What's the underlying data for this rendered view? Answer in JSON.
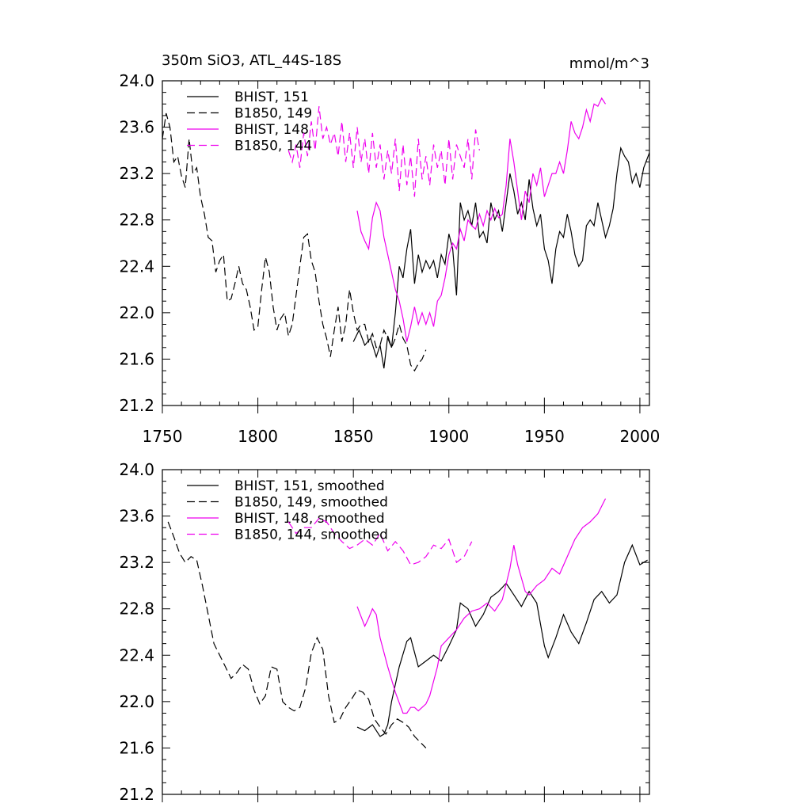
{
  "chart_data": [
    {
      "type": "line",
      "title_left": "350m SiO3, ATL_44S-18S",
      "title_right": "mmol/m^3",
      "xlim": [
        1750,
        2005
      ],
      "ylim": [
        21.2,
        24.0
      ],
      "x_ticks": [
        1750,
        1800,
        1850,
        1900,
        1950,
        2000
      ],
      "x_tick_labels": [
        "1750",
        "1800",
        "1850",
        "1900",
        "1950",
        "2000"
      ],
      "y_ticks": [
        21.2,
        21.6,
        22.0,
        22.4,
        22.8,
        23.2,
        23.6,
        24.0
      ],
      "y_tick_labels": [
        "21.2",
        "21.6",
        "22.0",
        "22.4",
        "22.8",
        "23.2",
        "23.6",
        "24.0"
      ],
      "series": [
        {
          "name": "BHIST, 151",
          "color": "#000000",
          "dash": "solid",
          "x": [
            1850,
            1853,
            1856,
            1859,
            1862,
            1864,
            1866,
            1868,
            1870,
            1872,
            1874,
            1876,
            1878,
            1880,
            1882,
            1884,
            1886,
            1888,
            1890,
            1892,
            1894,
            1896,
            1898,
            1900,
            1902,
            1904,
            1906,
            1908,
            1910,
            1912,
            1914,
            1916,
            1918,
            1920,
            1922,
            1924,
            1926,
            1928,
            1930,
            1932,
            1934,
            1936,
            1938,
            1940,
            1942,
            1944,
            1946,
            1948,
            1950,
            1952,
            1954,
            1956,
            1958,
            1960,
            1962,
            1964,
            1966,
            1968,
            1970,
            1972,
            1974,
            1976,
            1978,
            1980,
            1982,
            1984,
            1986,
            1988,
            1990,
            1992,
            1994,
            1996,
            1998,
            2000,
            2002,
            2005
          ],
          "y": [
            21.75,
            21.85,
            21.72,
            21.78,
            21.62,
            21.72,
            21.52,
            21.8,
            21.7,
            22.0,
            22.4,
            22.3,
            22.55,
            22.72,
            22.25,
            22.5,
            22.35,
            22.45,
            22.38,
            22.45,
            22.3,
            22.5,
            22.42,
            22.68,
            22.55,
            22.15,
            22.95,
            22.8,
            22.88,
            22.75,
            22.95,
            22.65,
            22.7,
            22.6,
            22.95,
            22.8,
            22.88,
            22.7,
            22.95,
            23.2,
            23.05,
            22.85,
            22.95,
            22.8,
            23.15,
            22.9,
            22.75,
            22.85,
            22.55,
            22.45,
            22.25,
            22.55,
            22.7,
            22.65,
            22.85,
            22.7,
            22.5,
            22.4,
            22.45,
            22.75,
            22.8,
            22.75,
            22.95,
            22.8,
            22.65,
            22.75,
            22.9,
            23.2,
            23.42,
            23.35,
            23.3,
            23.12,
            23.2,
            23.08,
            23.25,
            23.38
          ]
        },
        {
          "name": "B1850, 149",
          "color": "#000000",
          "dash": "dashed",
          "x": [
            1750,
            1752,
            1754,
            1756,
            1758,
            1760,
            1762,
            1764,
            1766,
            1768,
            1770,
            1772,
            1774,
            1776,
            1778,
            1780,
            1782,
            1784,
            1786,
            1788,
            1790,
            1792,
            1794,
            1796,
            1798,
            1800,
            1802,
            1804,
            1806,
            1808,
            1810,
            1812,
            1814,
            1816,
            1818,
            1820,
            1822,
            1824,
            1826,
            1828,
            1830,
            1832,
            1834,
            1836,
            1838,
            1840,
            1842,
            1844,
            1846,
            1848,
            1850,
            1852,
            1854,
            1856,
            1858,
            1860,
            1862,
            1864,
            1866,
            1868,
            1870,
            1872,
            1874,
            1876,
            1878,
            1880,
            1882,
            1884,
            1886,
            1888
          ],
          "y": [
            23.5,
            23.72,
            23.6,
            23.3,
            23.35,
            23.18,
            23.08,
            23.5,
            23.2,
            23.25,
            23.0,
            22.85,
            22.65,
            22.62,
            22.35,
            22.45,
            22.5,
            22.1,
            22.12,
            22.25,
            22.4,
            22.25,
            22.2,
            22.05,
            21.85,
            21.88,
            22.2,
            22.48,
            22.35,
            22.05,
            21.85,
            21.95,
            22.0,
            21.8,
            21.9,
            22.15,
            22.4,
            22.65,
            22.68,
            22.45,
            22.35,
            22.1,
            21.9,
            21.78,
            21.62,
            21.85,
            22.05,
            21.75,
            21.9,
            22.2,
            22.0,
            21.85,
            21.9,
            21.9,
            21.75,
            21.82,
            21.7,
            21.72,
            21.85,
            21.78,
            21.7,
            21.78,
            21.9,
            21.78,
            21.72,
            21.55,
            21.5,
            21.56,
            21.6,
            21.68
          ]
        },
        {
          "name": "BHIST, 148",
          "color": "#ee00ee",
          "dash": "solid",
          "x": [
            1852,
            1854,
            1856,
            1858,
            1860,
            1862,
            1864,
            1866,
            1868,
            1870,
            1872,
            1874,
            1876,
            1878,
            1880,
            1882,
            1884,
            1886,
            1888,
            1890,
            1892,
            1894,
            1896,
            1898,
            1900,
            1902,
            1904,
            1906,
            1908,
            1910,
            1912,
            1914,
            1916,
            1918,
            1920,
            1922,
            1924,
            1926,
            1928,
            1930,
            1932,
            1934,
            1936,
            1938,
            1940,
            1942,
            1944,
            1946,
            1948,
            1950,
            1952,
            1954,
            1956,
            1958,
            1960,
            1962,
            1964,
            1966,
            1968,
            1970,
            1972,
            1974,
            1976,
            1978,
            1980,
            1982
          ],
          "y": [
            22.88,
            22.7,
            22.62,
            22.55,
            22.82,
            22.95,
            22.88,
            22.65,
            22.5,
            22.35,
            22.2,
            22.1,
            21.95,
            21.75,
            21.88,
            22.05,
            21.9,
            22.0,
            21.9,
            22.0,
            21.88,
            22.1,
            22.15,
            22.3,
            22.5,
            22.6,
            22.55,
            22.72,
            22.62,
            22.8,
            22.75,
            22.72,
            22.85,
            22.75,
            22.88,
            22.8,
            22.9,
            22.82,
            22.85,
            23.1,
            23.5,
            23.3,
            23.05,
            22.8,
            23.05,
            22.95,
            23.2,
            23.1,
            23.25,
            23.0,
            23.1,
            23.2,
            23.2,
            23.3,
            23.2,
            23.4,
            23.65,
            23.55,
            23.5,
            23.6,
            23.75,
            23.65,
            23.8,
            23.78,
            23.85,
            23.8
          ]
        },
        {
          "name": "B1850, 144",
          "color": "#ee00ee",
          "dash": "dashed",
          "x": [
            1816,
            1818,
            1820,
            1822,
            1824,
            1826,
            1828,
            1830,
            1832,
            1834,
            1836,
            1838,
            1840,
            1842,
            1844,
            1846,
            1848,
            1850,
            1852,
            1854,
            1856,
            1858,
            1860,
            1862,
            1864,
            1866,
            1868,
            1870,
            1872,
            1874,
            1876,
            1878,
            1880,
            1882,
            1884,
            1886,
            1888,
            1890,
            1892,
            1894,
            1896,
            1898,
            1900,
            1902,
            1904,
            1906,
            1908,
            1910,
            1912,
            1914,
            1916
          ],
          "y": [
            23.4,
            23.3,
            23.45,
            23.25,
            23.55,
            23.35,
            23.65,
            23.4,
            23.78,
            23.5,
            23.6,
            23.45,
            23.55,
            23.35,
            23.65,
            23.3,
            23.55,
            23.25,
            23.6,
            23.3,
            23.5,
            23.2,
            23.55,
            23.25,
            23.45,
            23.15,
            23.4,
            23.2,
            23.5,
            23.05,
            23.45,
            23.1,
            23.35,
            23.0,
            23.5,
            23.15,
            23.35,
            23.1,
            23.45,
            23.25,
            23.4,
            23.1,
            23.5,
            23.15,
            23.45,
            23.35,
            23.25,
            23.5,
            23.15,
            23.58,
            23.4
          ]
        }
      ]
    },
    {
      "type": "line",
      "xlim": [
        1750,
        2005
      ],
      "ylim": [
        21.2,
        24.0
      ],
      "y_ticks": [
        21.2,
        21.6,
        22.0,
        22.4,
        22.8,
        23.2,
        23.6,
        24.0
      ],
      "y_tick_labels": [
        "21.2",
        "21.6",
        "22.0",
        "22.4",
        "22.8",
        "23.2",
        "23.6",
        "24.0"
      ],
      "series": [
        {
          "name": "BHIST, 151, smoothed",
          "color": "#000000",
          "dash": "solid",
          "x": [
            1852,
            1856,
            1860,
            1864,
            1866,
            1868,
            1870,
            1874,
            1878,
            1880,
            1884,
            1888,
            1892,
            1896,
            1900,
            1904,
            1906,
            1910,
            1914,
            1918,
            1922,
            1926,
            1930,
            1934,
            1938,
            1942,
            1946,
            1950,
            1952,
            1956,
            1960,
            1964,
            1968,
            1972,
            1976,
            1980,
            1984,
            1988,
            1992,
            1996,
            2000,
            2004
          ],
          "y": [
            21.78,
            21.75,
            21.8,
            21.7,
            21.72,
            21.8,
            22.0,
            22.3,
            22.52,
            22.55,
            22.3,
            22.35,
            22.4,
            22.35,
            22.48,
            22.62,
            22.85,
            22.8,
            22.65,
            22.75,
            22.9,
            22.95,
            23.02,
            22.92,
            22.82,
            22.95,
            22.85,
            22.48,
            22.38,
            22.55,
            22.75,
            22.6,
            22.5,
            22.68,
            22.88,
            22.95,
            22.85,
            22.92,
            23.2,
            23.35,
            23.18,
            23.22
          ]
        },
        {
          "name": "B1850, 149, smoothed",
          "color": "#000000",
          "dash": "dashed",
          "x": [
            1753,
            1756,
            1759,
            1762,
            1765,
            1768,
            1771,
            1774,
            1777,
            1780,
            1783,
            1786,
            1789,
            1792,
            1795,
            1798,
            1801,
            1804,
            1807,
            1810,
            1813,
            1816,
            1819,
            1822,
            1825,
            1828,
            1831,
            1834,
            1837,
            1840,
            1843,
            1846,
            1849,
            1852,
            1855,
            1858,
            1861,
            1864,
            1867,
            1870,
            1873,
            1876,
            1879,
            1882,
            1885,
            1888
          ],
          "y": [
            23.55,
            23.42,
            23.28,
            23.2,
            23.25,
            23.22,
            23.0,
            22.75,
            22.5,
            22.4,
            22.3,
            22.2,
            22.25,
            22.32,
            22.28,
            22.1,
            21.98,
            22.05,
            22.3,
            22.28,
            22.0,
            21.95,
            21.92,
            21.95,
            22.12,
            22.42,
            22.55,
            22.45,
            22.05,
            21.82,
            21.85,
            21.95,
            22.02,
            22.1,
            22.08,
            22.02,
            21.85,
            21.78,
            21.72,
            21.8,
            21.85,
            21.82,
            21.78,
            21.7,
            21.65,
            21.6
          ]
        },
        {
          "name": "BHIST, 148, smoothed",
          "color": "#ee00ee",
          "dash": "solid",
          "x": [
            1852,
            1856,
            1858,
            1860,
            1862,
            1864,
            1868,
            1872,
            1876,
            1878,
            1880,
            1882,
            1884,
            1888,
            1890,
            1894,
            1896,
            1900,
            1904,
            1908,
            1912,
            1916,
            1920,
            1924,
            1928,
            1932,
            1934,
            1936,
            1940,
            1942,
            1946,
            1950,
            1954,
            1958,
            1962,
            1966,
            1970,
            1974,
            1978,
            1982
          ],
          "y": [
            22.82,
            22.65,
            22.72,
            22.8,
            22.75,
            22.55,
            22.3,
            22.08,
            21.9,
            21.9,
            21.95,
            21.95,
            21.92,
            21.98,
            22.05,
            22.3,
            22.48,
            22.55,
            22.62,
            22.72,
            22.78,
            22.8,
            22.85,
            22.78,
            22.88,
            23.15,
            23.35,
            23.18,
            22.95,
            22.92,
            23.0,
            23.05,
            23.15,
            23.1,
            23.25,
            23.4,
            23.5,
            23.55,
            23.62,
            23.75
          ]
        },
        {
          "name": "B1850, 144, smoothed",
          "color": "#ee00ee",
          "dash": "dashed",
          "x": [
            1816,
            1820,
            1824,
            1828,
            1832,
            1836,
            1840,
            1844,
            1848,
            1852,
            1856,
            1860,
            1864,
            1868,
            1872,
            1876,
            1880,
            1884,
            1888,
            1892,
            1896,
            1900,
            1904,
            1908,
            1912
          ],
          "y": [
            23.55,
            23.45,
            23.5,
            23.5,
            23.58,
            23.55,
            23.45,
            23.38,
            23.32,
            23.35,
            23.4,
            23.35,
            23.45,
            23.3,
            23.38,
            23.3,
            23.18,
            23.2,
            23.25,
            23.35,
            23.32,
            23.4,
            23.2,
            23.25,
            23.38
          ]
        }
      ]
    }
  ]
}
